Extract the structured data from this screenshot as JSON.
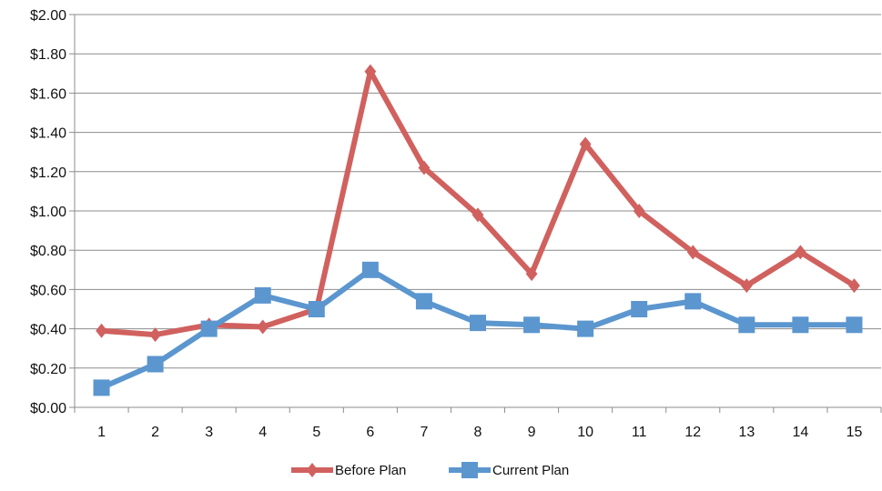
{
  "chart_data": {
    "type": "line",
    "title": "",
    "xlabel": "",
    "ylabel": "",
    "categories": [
      "1",
      "2",
      "3",
      "4",
      "5",
      "6",
      "7",
      "8",
      "9",
      "10",
      "11",
      "12",
      "13",
      "14",
      "15"
    ],
    "ylim": [
      0,
      2.0
    ],
    "yticks": [
      "$0.00",
      "$0.20",
      "$0.40",
      "$0.60",
      "$0.80",
      "$1.00",
      "$1.20",
      "$1.40",
      "$1.60",
      "$1.80",
      "$2.00"
    ],
    "grid": true,
    "legend_position": "bottom",
    "series": [
      {
        "name": "Before Plan",
        "color": "#D0615E",
        "marker": "diamond",
        "values": [
          0.39,
          0.37,
          0.42,
          0.41,
          0.5,
          1.71,
          1.22,
          0.98,
          0.68,
          1.34,
          1.0,
          0.79,
          0.62,
          0.79,
          0.62
        ]
      },
      {
        "name": "Current Plan",
        "color": "#5B96CF",
        "marker": "square",
        "values": [
          0.1,
          0.22,
          0.4,
          0.57,
          0.5,
          0.7,
          0.54,
          0.43,
          0.42,
          0.4,
          0.5,
          0.54,
          0.42,
          0.42,
          0.42
        ]
      }
    ]
  }
}
